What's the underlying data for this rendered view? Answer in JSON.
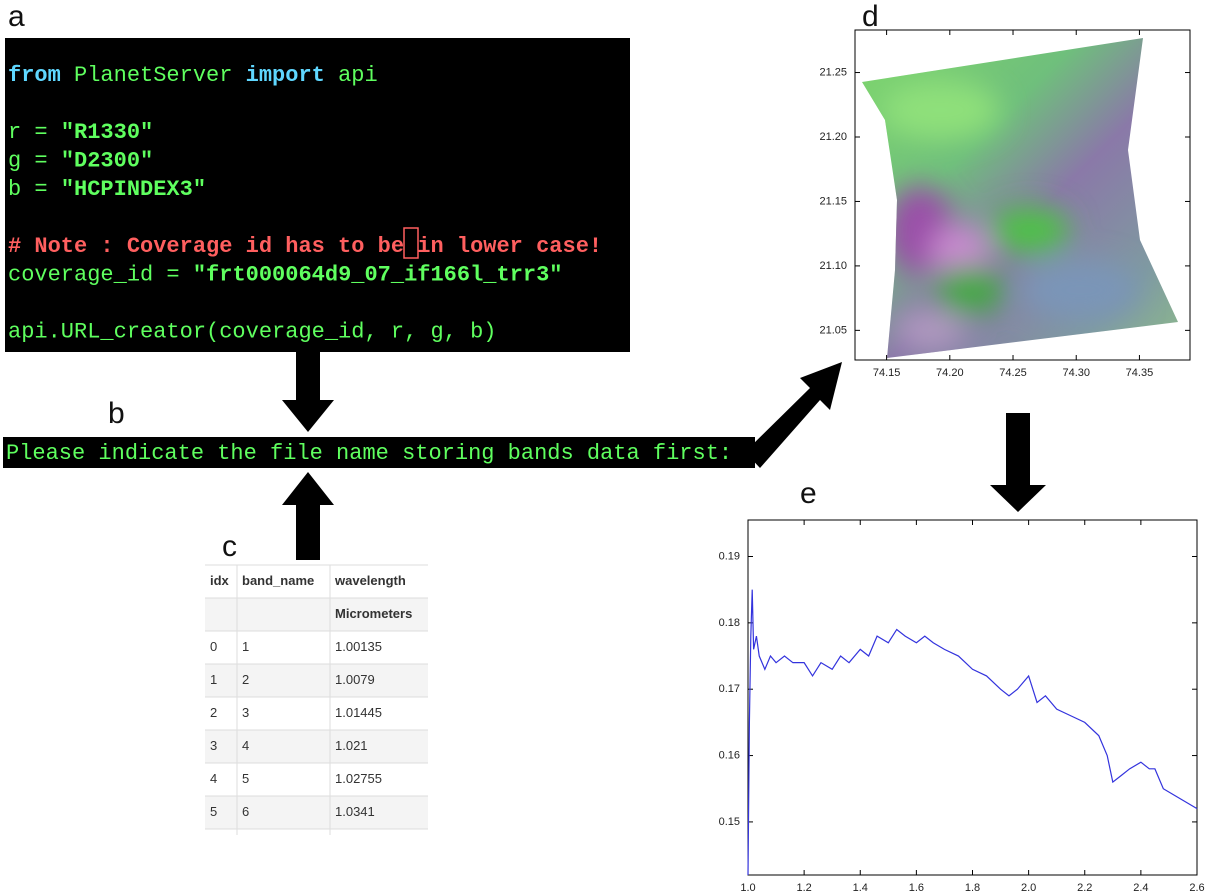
{
  "panel_labels": [
    "a",
    "b",
    "c",
    "d",
    "e"
  ],
  "code": [
    [
      [
        {
          "text": "from",
          "color": "#5fd7ff",
          "bold": true
        },
        {
          "text": " PlanetServer ",
          "color": "#5fff5f"
        },
        {
          "text": "import",
          "color": "#5fd7ff",
          "bold": true
        },
        {
          "text": " api",
          "color": "#5fff5f"
        }
      ]
    ],
    [
      [
        {
          "text": "r = ",
          "color": "#5fff5f"
        },
        {
          "text": "\"R1330\"",
          "color": "#5fff5f",
          "bold": true
        }
      ],
      [
        {
          "text": "g = ",
          "color": "#5fff5f"
        },
        {
          "text": "\"D2300\"",
          "color": "#5fff5f",
          "bold": true
        }
      ],
      [
        {
          "text": "b = ",
          "color": "#5fff5f"
        },
        {
          "text": "\"HCPINDEX3\"",
          "color": "#5fff5f",
          "bold": true
        }
      ]
    ],
    [
      [
        {
          "text": "# Note : Coverage id has to be in lower case!",
          "color": "#ff5f5f",
          "bold": true
        }
      ],
      [
        {
          "text": "coverage_id = ",
          "color": "#5fff5f"
        },
        {
          "text": "\"frt000064d9_07_if166l_trr3\"",
          "color": "#5fff5f",
          "bold": true
        }
      ]
    ],
    [
      [
        {
          "text": "api.URL_creator(coverage_id, r, g, b)",
          "color": "#5fff5f"
        }
      ]
    ]
  ],
  "terminal": "Please indicate the file name storing bands data first:",
  "table": {
    "header": [
      "idx",
      "band_name",
      "wavelength"
    ],
    "unit": "Micrometers",
    "rows": [
      [
        "0",
        "1",
        "1.00135"
      ],
      [
        "1",
        "2",
        "1.0079"
      ],
      [
        "2",
        "3",
        "1.01445"
      ],
      [
        "3",
        "4",
        "1.021"
      ],
      [
        "4",
        "5",
        "1.02755"
      ],
      [
        "5",
        "6",
        "1.0341"
      ]
    ]
  },
  "chart_data": [
    {
      "type": "image",
      "xlim": [
        74.125,
        74.39
      ],
      "ylim": [
        21.027,
        21.283
      ],
      "xticks": [
        74.15,
        {
          "value": 74.2,
          "label": "74.20"
        },
        74.25,
        {
          "value": 74.3,
          "label": "74.30"
        },
        74.35
      ],
      "yticks": [
        21.05,
        {
          "value": 21.1,
          "label": "21.10"
        },
        21.15,
        {
          "value": 21.2,
          "label": "21.20"
        },
        21.25
      ]
    },
    {
      "type": "line",
      "color": "#3333dd",
      "xlim": [
        1.0,
        2.6
      ],
      "ylim": [
        0.142,
        0.1955
      ],
      "xticks": [
        {
          "value": 1,
          "label": "1.0"
        },
        1.2,
        1.4,
        1.6,
        1.8,
        {
          "value": 2,
          "label": "2.0"
        },
        2.2,
        2.4,
        2.6
      ],
      "yticks": [
        0.15,
        0.16,
        0.17,
        0.18,
        0.19
      ],
      "x": [
        1.0,
        1.005,
        1.01,
        1.015,
        1.02,
        1.03,
        1.04,
        1.06,
        1.08,
        1.1,
        1.13,
        1.16,
        1.2,
        1.23,
        1.26,
        1.3,
        1.33,
        1.36,
        1.4,
        1.43,
        1.46,
        1.5,
        1.53,
        1.56,
        1.6,
        1.63,
        1.66,
        1.7,
        1.75,
        1.8,
        1.85,
        1.9,
        1.93,
        1.96,
        2.0,
        2.03,
        2.06,
        2.1,
        2.15,
        2.2,
        2.25,
        2.28,
        2.3,
        2.33,
        2.36,
        2.4,
        2.43,
        2.45,
        2.48,
        2.52,
        2.56,
        2.6
      ],
      "values": [
        0.142,
        0.165,
        0.178,
        0.185,
        0.176,
        0.178,
        0.175,
        0.173,
        0.175,
        0.174,
        0.175,
        0.174,
        0.174,
        0.172,
        0.174,
        0.173,
        0.175,
        0.174,
        0.176,
        0.175,
        0.178,
        0.177,
        0.179,
        0.178,
        0.177,
        0.178,
        0.177,
        0.176,
        0.175,
        0.173,
        0.172,
        0.17,
        0.169,
        0.17,
        0.172,
        0.168,
        0.169,
        0.167,
        0.166,
        0.165,
        0.163,
        0.16,
        0.156,
        0.157,
        0.158,
        0.159,
        0.158,
        0.158,
        0.155,
        0.154,
        0.153,
        0.152
      ]
    }
  ]
}
